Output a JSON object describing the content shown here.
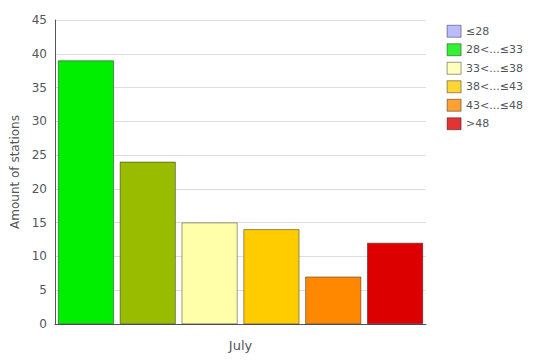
{
  "chart_data": {
    "type": "bar",
    "categories": [
      null,
      null,
      null,
      null,
      null,
      null
    ],
    "values": [
      39,
      24,
      15,
      14,
      7,
      12
    ],
    "colors": [
      "#00ee00",
      "#99bb00",
      "#ffffaa",
      "#ffcc00",
      "#ff8800",
      "#dd0000"
    ],
    "xlabel": "July",
    "ylabel": "Amount of stations",
    "ylim": [
      0,
      45
    ],
    "yticks": [
      0,
      5,
      10,
      15,
      20,
      25,
      30,
      35,
      40,
      45
    ],
    "grid": true,
    "tick_labels": "y",
    "legend": "upper right",
    "legend_entries": [
      {
        "name": "≤28",
        "color": "#aaaaff"
      },
      {
        "name": "28<...≤33",
        "color": "#00ee00"
      },
      {
        "name": "33<...≤38",
        "color": "#ffffaa"
      },
      {
        "name": "38<...≤43",
        "color": "#ffcc00"
      },
      {
        "name": "43<...≤48",
        "color": "#ff8800"
      },
      {
        "name": ">48",
        "color": "#dd0000"
      }
    ]
  }
}
